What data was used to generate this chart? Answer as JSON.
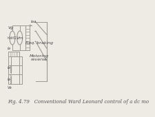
{
  "bg_color": "#eeebe5",
  "title_text": "Fig. 4.79   Conventional Ward Leonard control of a dc mo",
  "title_fontsize": 5.0,
  "label_vg": "Vg",
  "label_vvg": "VVG",
  "label_vm": "Vm",
  "label_ia": "Iaa",
  "label_req_braking": "Req. braking",
  "label_motoring_reverse": "Motoring\nreverse",
  "line_color": "#999990",
  "text_color": "#444444",
  "caption_color": "#555555"
}
